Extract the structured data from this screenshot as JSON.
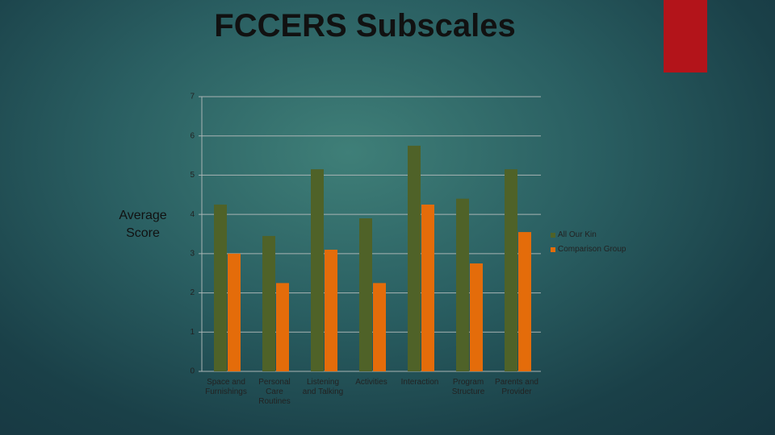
{
  "chart_data": {
    "type": "bar",
    "title": "FCCERS Subscales",
    "y_label": "Average Score",
    "categories": [
      "Space and Furnishings",
      "Personal Care Routines",
      "Listening and Talking",
      "Activities",
      "Interaction",
      "Program Structure",
      "Parents and Provider"
    ],
    "series": [
      {
        "name": "All Our Kin",
        "color": "#4f6228",
        "values": [
          4.25,
          3.45,
          5.15,
          3.9,
          5.75,
          4.4,
          5.15
        ]
      },
      {
        "name": "Comparison Group",
        "color": "#e46c0a",
        "values": [
          3.0,
          2.25,
          3.1,
          2.25,
          4.25,
          2.75,
          3.55
        ]
      }
    ],
    "ylim": [
      0,
      7
    ],
    "yticks": [
      0,
      1,
      2,
      3,
      4,
      5,
      6,
      7
    ],
    "grid": true,
    "legend": "right"
  }
}
